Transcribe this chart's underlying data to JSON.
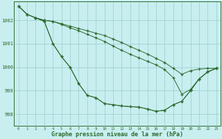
{
  "title": "Graphe pression niveau de la mer (hPa)",
  "bg_color": "#c8eef0",
  "grid_color": "#99cccc",
  "line_color": "#2d6a2d",
  "xlim": [
    -0.5,
    23.5
  ],
  "ylim": [
    997.5,
    1002.8
  ],
  "yticks": [
    998,
    999,
    1000,
    1001,
    1002
  ],
  "xticks": [
    0,
    1,
    2,
    3,
    4,
    5,
    6,
    7,
    8,
    9,
    10,
    11,
    12,
    13,
    14,
    15,
    16,
    17,
    18,
    19,
    20,
    21,
    22,
    23
  ],
  "line1_x": [
    0,
    1,
    2,
    3,
    4,
    5,
    6,
    7,
    8,
    9,
    10,
    11,
    12,
    13,
    14,
    15,
    16,
    17,
    18,
    19,
    20,
    21,
    22,
    23
  ],
  "line1_y": [
    1002.6,
    1002.25,
    1002.1,
    1002.0,
    1001.95,
    1001.85,
    1001.75,
    1001.65,
    1001.55,
    1001.45,
    1001.35,
    1001.2,
    1001.05,
    1000.88,
    1000.72,
    1000.56,
    1000.38,
    1000.2,
    999.95,
    999.7,
    999.85,
    999.92,
    999.95,
    999.95
  ],
  "line2_x": [
    0,
    1,
    2,
    3,
    4,
    5,
    6,
    7,
    8,
    9,
    10,
    11,
    12,
    13,
    14,
    15,
    16,
    17,
    18,
    19,
    20,
    21,
    22,
    23
  ],
  "line2_y": [
    1002.6,
    1002.25,
    1002.1,
    1002.0,
    1001.95,
    1001.82,
    1001.68,
    1001.55,
    1001.4,
    1001.25,
    1001.1,
    1000.9,
    1000.72,
    1000.55,
    1000.4,
    1000.25,
    1000.1,
    999.9,
    999.55,
    998.85,
    999.05,
    999.5,
    999.8,
    999.95
  ],
  "line3_x": [
    0,
    1,
    2,
    3,
    4,
    5,
    6,
    7,
    8,
    9,
    10,
    11,
    12,
    13,
    14,
    15,
    16,
    17,
    18,
    19,
    20,
    21,
    22,
    23
  ],
  "line3_y": [
    1002.6,
    1002.25,
    1002.1,
    1001.95,
    1001.0,
    1000.45,
    1000.0,
    999.3,
    998.8,
    998.7,
    998.45,
    998.4,
    998.35,
    998.32,
    998.3,
    998.22,
    998.12,
    998.17,
    998.4,
    998.55,
    999.0,
    999.5,
    999.8,
    999.95
  ],
  "line4_x": [
    2,
    3,
    4,
    5,
    6,
    7,
    8,
    9,
    10,
    11,
    12,
    13,
    14,
    15,
    16,
    17,
    18,
    19,
    20,
    21,
    22,
    23
  ],
  "line4_y": [
    1002.1,
    1001.95,
    1001.0,
    1000.45,
    1000.0,
    999.3,
    998.8,
    998.7,
    998.45,
    998.4,
    998.35,
    998.32,
    998.3,
    998.22,
    998.12,
    998.17,
    998.4,
    998.55,
    999.0,
    999.5,
    999.8,
    999.95
  ]
}
